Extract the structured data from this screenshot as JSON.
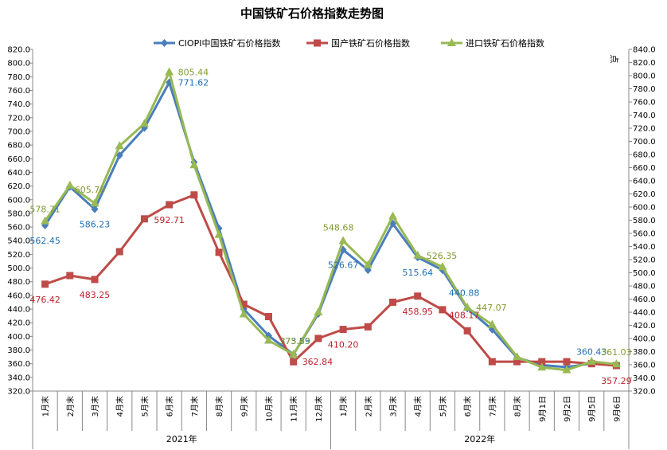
{
  "colors": {
    "ciopi": "#4a7ebb",
    "domestic": "#be4b48",
    "import": "#98b954",
    "ciopi_label": "#1f6fb4",
    "domestic_label": "#c0202a",
    "import_label": "#7f9a2f"
  },
  "chart_data": {
    "type": "line",
    "title": "中国铁矿石价格指数走势图",
    "right_axis_unit": "点",
    "categories": [
      "1月末",
      "2月末",
      "3月末",
      "4月末",
      "5月末",
      "6月末",
      "7月末",
      "8月末",
      "9月末",
      "10月末",
      "11月末",
      "12月末",
      "1月末",
      "2月末",
      "3月末",
      "4月末",
      "5月末",
      "6月末",
      "7月末",
      "8月末",
      "9月1日",
      "9月2日",
      "9月5日",
      "9月6日"
    ],
    "year_groups": [
      {
        "label": "2021年",
        "start": 0,
        "end": 11
      },
      {
        "label": "2022年",
        "start": 12,
        "end": 23
      }
    ],
    "y_left": {
      "min": 320,
      "max": 820,
      "step": 20
    },
    "y_right": {
      "min": 320,
      "max": 840,
      "step": 20
    },
    "grid": false,
    "legend_position": "top",
    "series": [
      {
        "name": "CIOPI中国铁矿石价格指数",
        "color_key": "ciopi",
        "marker": "diamond",
        "axis": "left",
        "values": [
          562.45,
          619,
          586.23,
          665,
          705,
          771.62,
          655,
          558,
          440,
          401,
          373.59,
          433,
          526.67,
          497,
          565,
          515.64,
          497,
          440.88,
          410,
          369,
          358,
          355,
          360.43,
          358
        ]
      },
      {
        "name": "国产铁矿石价格指数",
        "color_key": "domestic",
        "marker": "square",
        "axis": "left",
        "values": [
          476.42,
          489,
          483.25,
          524,
          572,
          592.71,
          607,
          523,
          447,
          429,
          362.84,
          397,
          410.2,
          414,
          450,
          458.95,
          439,
          408.17,
          363,
          363,
          363,
          363,
          360,
          357.29
        ]
      },
      {
        "name": "进口铁矿石价格指数",
        "color_key": "import",
        "marker": "triangle",
        "axis": "right",
        "values": [
          578.71,
          633,
          605.78,
          693,
          727,
          805.44,
          664,
          558,
          437,
          397,
          375.63,
          440,
          548.68,
          512,
          586,
          526.35,
          509,
          447.07,
          421,
          372,
          356,
          352,
          365,
          361.03
        ]
      }
    ],
    "data_labels": [
      {
        "series": 0,
        "index": 0,
        "text": "562.45",
        "pos": "below"
      },
      {
        "series": 0,
        "index": 2,
        "text": "586.23",
        "pos": "below"
      },
      {
        "series": 0,
        "index": 5,
        "text": "771.62",
        "pos": "right"
      },
      {
        "series": 0,
        "index": 10,
        "text": "373.59",
        "pos": "upleft"
      },
      {
        "series": 0,
        "index": 12,
        "text": "526.67",
        "pos": "below"
      },
      {
        "series": 0,
        "index": 15,
        "text": "515.64",
        "pos": "below"
      },
      {
        "series": 0,
        "index": 17,
        "text": "440.88",
        "pos": "belowleft"
      },
      {
        "series": 0,
        "index": 22,
        "text": "360.43",
        "pos": "above"
      },
      {
        "series": 1,
        "index": 0,
        "text": "476.42",
        "pos": "below"
      },
      {
        "series": 1,
        "index": 2,
        "text": "483.25",
        "pos": "below"
      },
      {
        "series": 1,
        "index": 5,
        "text": "592.71",
        "pos": "below"
      },
      {
        "series": 1,
        "index": 10,
        "text": "362.84",
        "pos": "right"
      },
      {
        "series": 1,
        "index": 12,
        "text": "410.20",
        "pos": "below"
      },
      {
        "series": 1,
        "index": 15,
        "text": "458.95",
        "pos": "below"
      },
      {
        "series": 1,
        "index": 17,
        "text": "408.17",
        "pos": "belowleft"
      },
      {
        "series": 1,
        "index": 23,
        "text": "357.29",
        "pos": "below"
      },
      {
        "series": 2,
        "index": 0,
        "text": "578.71",
        "pos": "above"
      },
      {
        "series": 2,
        "index": 2,
        "text": "605.78",
        "pos": "aboveleft"
      },
      {
        "series": 2,
        "index": 5,
        "text": "805.44",
        "pos": "right"
      },
      {
        "series": 2,
        "index": 10,
        "text": "375.63",
        "pos": "upleft"
      },
      {
        "series": 2,
        "index": 12,
        "text": "548.68",
        "pos": "aboveleft"
      },
      {
        "series": 2,
        "index": 15,
        "text": "526.35",
        "pos": "right"
      },
      {
        "series": 2,
        "index": 17,
        "text": "447.07",
        "pos": "right"
      },
      {
        "series": 2,
        "index": 23,
        "text": "361.03",
        "pos": "above"
      }
    ]
  }
}
